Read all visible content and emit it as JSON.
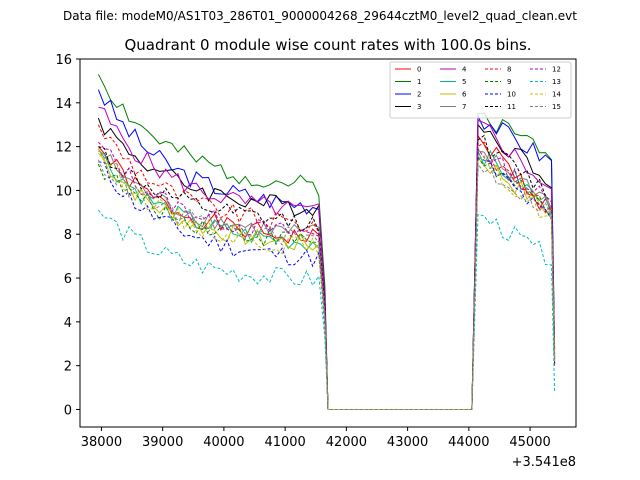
{
  "chart_data": {
    "type": "line",
    "suptitle": "Data file: modeM0/AS1T03_286T01_9000004268_29644cztM0_level2_quad_clean.evt",
    "title": "Quadrant 0 module wise count rates with 100.0s bins.",
    "xlabel": "",
    "ylabel": "",
    "x_offset_label": "+3.541e8",
    "xlim": [
      37650,
      45750
    ],
    "ylim": [
      -0.8,
      16.0
    ],
    "xticks": [
      38000,
      39000,
      40000,
      41000,
      42000,
      43000,
      44000,
      45000
    ],
    "xtick_labels": [
      "38000",
      "39000",
      "40000",
      "41000",
      "42000",
      "43000",
      "44000",
      "45000"
    ],
    "yticks": [
      0,
      2,
      4,
      6,
      8,
      10,
      12,
      14,
      16
    ],
    "ytick_labels": [
      "0",
      "2",
      "4",
      "6",
      "8",
      "10",
      "12",
      "14",
      "16"
    ],
    "legend_position": "top-right",
    "segments": {
      "first": {
        "x_start": 37950,
        "x_end": 41550,
        "step": 100
      },
      "gap_low_x": [
        41650,
        41700,
        44050
      ],
      "second": {
        "x_start": 44150,
        "x_end": 45350,
        "step": 100
      },
      "end_x": 45400
    },
    "series": [
      {
        "name": "0",
        "color": "#ff0000",
        "dash": "solid",
        "start": 12.0,
        "end": 7.8,
        "second_start": 12.5,
        "second_end": 9.0,
        "final": 2.0
      },
      {
        "name": "1",
        "color": "#008000",
        "dash": "solid",
        "start": 15.3,
        "end": 10.2,
        "second_start": 13.5,
        "second_end": 11.8,
        "final": 2.8
      },
      {
        "name": "2",
        "color": "#0000ff",
        "dash": "solid",
        "start": 14.6,
        "end": 9.3,
        "second_start": 13.4,
        "second_end": 11.3,
        "final": 2.7
      },
      {
        "name": "3",
        "color": "#000000",
        "dash": "solid",
        "start": 13.3,
        "end": 9.2,
        "second_start": 13.0,
        "second_end": 10.5,
        "final": 2.5
      },
      {
        "name": "4",
        "color": "#bf00bf",
        "dash": "solid",
        "start": 13.8,
        "end": 9.0,
        "second_start": 13.2,
        "second_end": 10.0,
        "final": 2.4
      },
      {
        "name": "5",
        "color": "#00bf7f",
        "dash": "solid",
        "start": 11.8,
        "end": 7.6,
        "second_start": 11.8,
        "second_end": 9.2,
        "final": 2.2
      },
      {
        "name": "6",
        "color": "#bfbf00",
        "dash": "solid",
        "start": 11.7,
        "end": 7.5,
        "second_start": 11.5,
        "second_end": 9.0,
        "final": 2.2
      },
      {
        "name": "7",
        "color": "#808080",
        "dash": "solid",
        "start": 11.9,
        "end": 8.0,
        "second_start": 11.8,
        "second_end": 9.5,
        "final": 2.3
      },
      {
        "name": "8",
        "color": "#ff0000",
        "dash": "dashed",
        "start": 13.0,
        "end": 8.4,
        "second_start": 12.0,
        "second_end": 9.2,
        "final": 2.3
      },
      {
        "name": "9",
        "color": "#008000",
        "dash": "dashed",
        "start": 11.2,
        "end": 7.7,
        "second_start": 11.5,
        "second_end": 9.0,
        "final": 2.2
      },
      {
        "name": "10",
        "color": "#0000ff",
        "dash": "dashed",
        "start": 11.3,
        "end": 6.9,
        "second_start": 11.5,
        "second_end": 8.6,
        "final": 2.1
      },
      {
        "name": "11",
        "color": "#000000",
        "dash": "dashed",
        "start": 12.0,
        "end": 8.5,
        "second_start": 12.3,
        "second_end": 9.8,
        "final": 2.4
      },
      {
        "name": "12",
        "color": "#bf00bf",
        "dash": "dashed",
        "start": 12.2,
        "end": 8.0,
        "second_start": 11.9,
        "second_end": 9.4,
        "final": 2.3
      },
      {
        "name": "13",
        "color": "#00bfbf",
        "dash": "dashed",
        "start": 9.1,
        "end": 5.9,
        "second_start": 8.9,
        "second_end": 6.9,
        "final": 0.8
      },
      {
        "name": "14",
        "color": "#bfbf00",
        "dash": "dashed",
        "start": 11.9,
        "end": 7.4,
        "second_start": 11.4,
        "second_end": 8.7,
        "final": 2.2
      },
      {
        "name": "15",
        "color": "#808080",
        "dash": "dashed",
        "start": 11.4,
        "end": 7.8,
        "second_start": 11.2,
        "second_end": 9.0,
        "final": 2.2
      }
    ]
  }
}
